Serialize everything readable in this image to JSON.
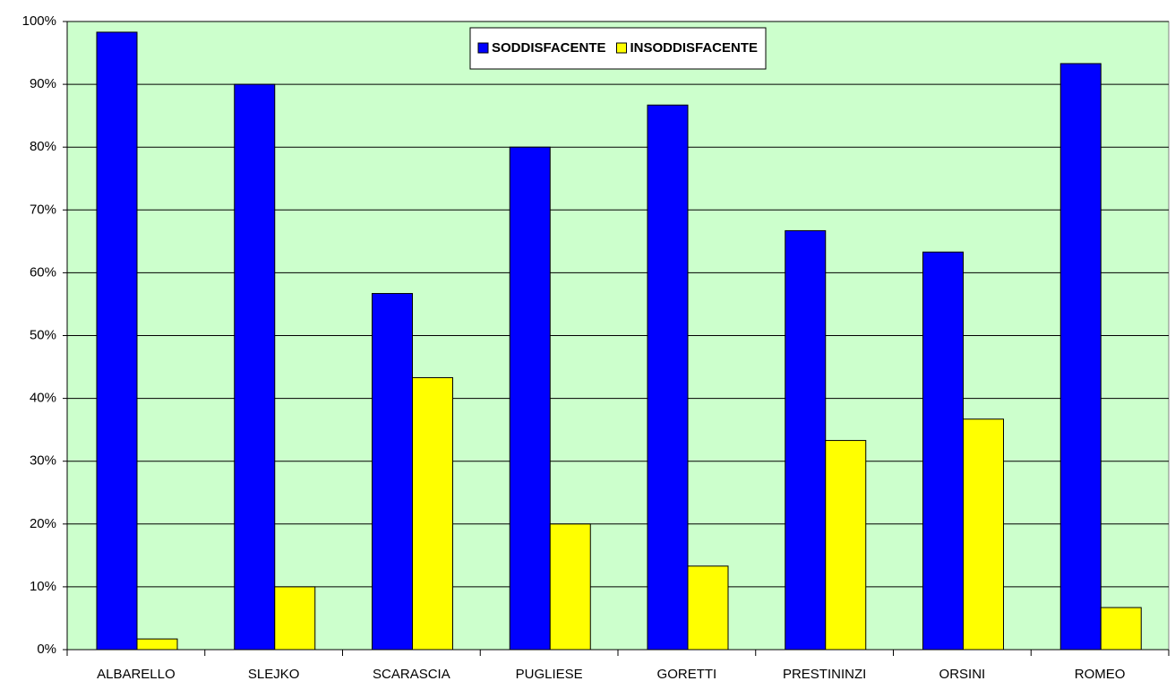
{
  "chart_data": {
    "type": "bar",
    "categories": [
      "ALBARELLO",
      "SLEJKO",
      "SCARASCIA",
      "PUGLIESE",
      "GORETTI",
      "PRESTININZI",
      "ORSINI",
      "ROMEO"
    ],
    "series": [
      {
        "name": "SODDISFACENTE",
        "color": "#0000ff",
        "values": [
          98.3,
          90,
          56.7,
          80,
          86.7,
          66.7,
          63.3,
          93.3
        ]
      },
      {
        "name": "INSODDISFACENTE",
        "color": "#ffff00",
        "values": [
          1.7,
          10,
          43.3,
          20,
          13.3,
          33.3,
          36.7,
          6.7
        ]
      }
    ],
    "ylim": [
      0,
      100
    ],
    "yticks": [
      {
        "value": 0,
        "label": "0%"
      },
      {
        "value": 10,
        "label": "10%"
      },
      {
        "value": 20,
        "label": "20%"
      },
      {
        "value": 30,
        "label": "30%"
      },
      {
        "value": 40,
        "label": "40%"
      },
      {
        "value": 50,
        "label": "50%"
      },
      {
        "value": 60,
        "label": "60%"
      },
      {
        "value": 70,
        "label": "70%"
      },
      {
        "value": 80,
        "label": "80%"
      },
      {
        "value": 90,
        "label": "90%"
      },
      {
        "value": 100,
        "label": "100%"
      }
    ],
    "grid": true,
    "legend": "top",
    "background": "#ccffcc"
  }
}
